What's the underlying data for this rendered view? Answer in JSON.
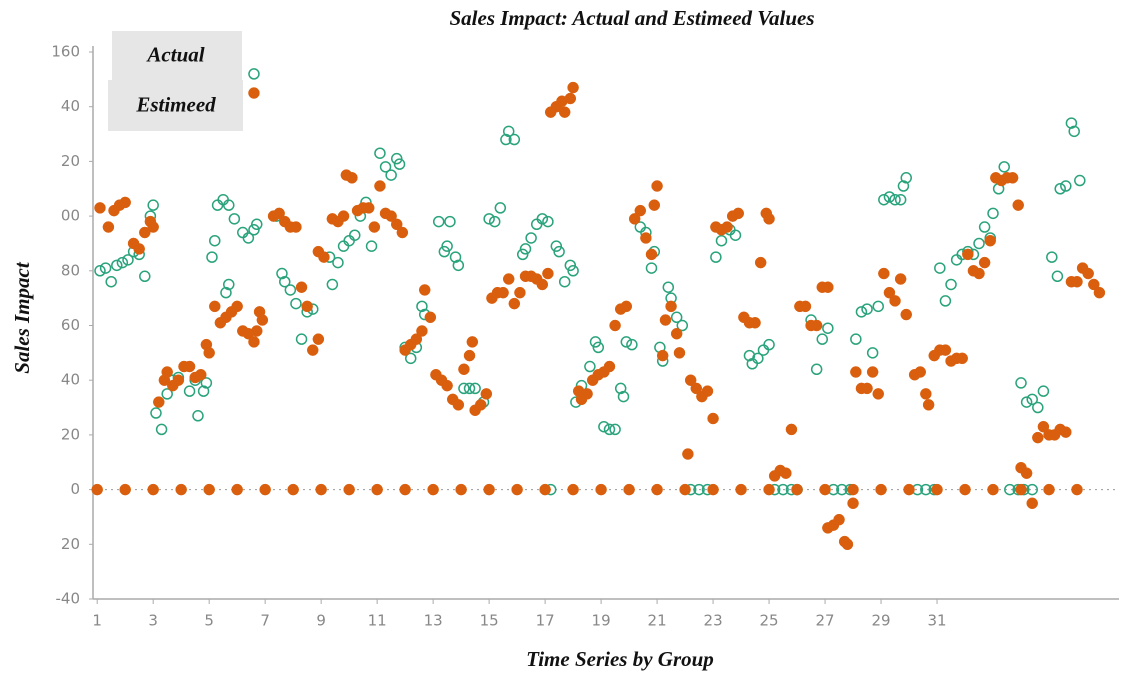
{
  "chart_data": {
    "type": "scatter",
    "title": "Sales Impact: Actual and Estimeed Values",
    "x_label": "Time Series by Group",
    "y_label": "Sales Impact",
    "xlim": [
      0.85,
      37.5
    ],
    "xticks": [
      1,
      3,
      5,
      7,
      9,
      11,
      13,
      15,
      17,
      19,
      21,
      23,
      25,
      27,
      29,
      31
    ],
    "ylim": [
      -40,
      160
    ],
    "yticks": [
      160,
      {
        "value": 140,
        "label": "40"
      },
      {
        "value": 120,
        "label": "20"
      },
      {
        "value": 100,
        "label": "00"
      },
      80,
      60,
      40,
      20,
      0,
      {
        "value": -20,
        "label": "20"
      },
      -40
    ],
    "zero_line": true,
    "legend": "top-left",
    "series": [
      {
        "name": "Actual",
        "color": "#2aa37c",
        "marker": "hollow",
        "x": [
          1.1,
          1.3,
          1.5,
          1.7,
          1.9,
          2.1,
          2.3,
          2.5,
          2.7,
          2.9,
          3.0,
          3.1,
          3.3,
          3.5,
          3.7,
          3.9,
          4.3,
          4.5,
          4.6,
          4.8,
          4.9,
          5.1,
          5.2,
          5.3,
          5.5,
          5.7,
          5.9,
          5.6,
          5.7,
          6.2,
          6.4,
          6.6,
          6.7,
          6.6,
          7.4,
          7.6,
          7.7,
          7.9,
          8.1,
          8.3,
          8.5,
          8.7,
          9.3,
          9.4,
          9.6,
          9.8,
          10.0,
          10.2,
          10.4,
          10.6,
          10.8,
          11.1,
          11.3,
          11.5,
          11.7,
          11.8,
          12.0,
          12.2,
          12.4,
          12.6,
          12.7,
          13.2,
          13.4,
          13.5,
          13.6,
          13.8,
          13.9,
          14.1,
          14.3,
          14.5,
          14.8,
          15.0,
          15.2,
          15.4,
          15.6,
          15.7,
          15.9,
          16.2,
          16.3,
          16.5,
          16.7,
          16.9,
          17.1,
          17.2,
          17.4,
          17.5,
          17.7,
          17.9,
          18.0,
          18.1,
          18.3,
          18.6,
          18.8,
          18.9,
          19.1,
          19.3,
          19.5,
          19.7,
          19.8,
          19.9,
          20.1,
          20.4,
          20.6,
          20.8,
          20.9,
          21.1,
          21.2,
          21.4,
          21.5,
          21.7,
          21.9,
          22.2,
          22.5,
          22.8,
          23.1,
          23.3,
          23.6,
          23.8,
          24.3,
          24.4,
          24.6,
          24.8,
          25.0,
          25.2,
          25.5,
          25.8,
          26.0,
          26.5,
          26.7,
          26.9,
          27.1,
          27.3,
          27.6,
          27.9,
          28.1,
          28.3,
          28.5,
          28.7,
          28.9,
          29.1,
          29.3,
          29.5,
          29.7,
          29.8,
          29.9,
          30.3,
          30.6,
          30.9,
          31.1,
          31.3,
          31.5,
          31.7,
          31.9,
          32.1,
          32.3,
          32.5,
          32.7,
          32.9,
          33.0,
          33.2,
          33.4,
          33.6,
          33.9,
          34.1,
          34.4,
          34.0,
          34.2,
          34.4,
          34.6,
          34.8,
          35.1,
          35.3,
          35.4,
          35.6,
          35.8,
          35.9,
          36.1
        ],
        "values": [
          80,
          81,
          76,
          82,
          83,
          84,
          87,
          86,
          78,
          100,
          104,
          28,
          22,
          35,
          40,
          41,
          36,
          40,
          27,
          36,
          39,
          85,
          91,
          104,
          106,
          104,
          99,
          72,
          75,
          94,
          92,
          95,
          97,
          152,
          100,
          79,
          76,
          73,
          68,
          55,
          65,
          66,
          85,
          75,
          83,
          89,
          91,
          93,
          100,
          105,
          89,
          123,
          118,
          115,
          121,
          119,
          52,
          48,
          52,
          67,
          64,
          98,
          87,
          89,
          98,
          85,
          82,
          37,
          37,
          37,
          32,
          99,
          98,
          103,
          128,
          131,
          128,
          86,
          88,
          92,
          97,
          99,
          98,
          0,
          89,
          87,
          76,
          82,
          80,
          32,
          38,
          45,
          54,
          52,
          23,
          22,
          22,
          37,
          34,
          54,
          53,
          96,
          94,
          81,
          87,
          52,
          47,
          74,
          70,
          63,
          60,
          0,
          0,
          0,
          85,
          91,
          95,
          93,
          49,
          46,
          48,
          51,
          53,
          0,
          0,
          0,
          0,
          62,
          44,
          55,
          59,
          0,
          0,
          0,
          55,
          65,
          66,
          50,
          67,
          106,
          107,
          106,
          106,
          111,
          114,
          0,
          0,
          0,
          81,
          69,
          75,
          84,
          86,
          87,
          86,
          90,
          96,
          92,
          101,
          110,
          118,
          0,
          0,
          0,
          0,
          39,
          32,
          33,
          30,
          36,
          85,
          78,
          110,
          111,
          134,
          131,
          113
        ]
      },
      {
        "name": "Estimeed",
        "color": "#d95f0e",
        "marker": "filled",
        "x": [
          1.1,
          1.4,
          1.6,
          1.8,
          2.0,
          2.3,
          2.5,
          2.7,
          2.9,
          3.0,
          3.2,
          3.4,
          3.5,
          3.7,
          3.9,
          4.1,
          4.3,
          4.5,
          4.7,
          4.9,
          5.0,
          5.2,
          5.4,
          5.6,
          5.8,
          6.0,
          6.2,
          6.4,
          6.6,
          6.6,
          6.7,
          6.8,
          6.9,
          7.3,
          7.5,
          7.7,
          7.9,
          8.1,
          8.3,
          8.5,
          8.7,
          8.9,
          8.9,
          9.1,
          9.4,
          9.6,
          9.8,
          9.9,
          10.1,
          10.3,
          10.5,
          10.7,
          10.9,
          11.1,
          11.3,
          11.5,
          11.7,
          11.9,
          12.0,
          12.2,
          12.4,
          12.6,
          12.7,
          12.9,
          13.1,
          13.3,
          13.5,
          13.7,
          13.9,
          14.1,
          14.3,
          14.4,
          14.5,
          14.7,
          14.9,
          15.1,
          15.3,
          15.5,
          15.7,
          15.9,
          16.1,
          16.3,
          16.5,
          16.7,
          16.9,
          17.1,
          17.2,
          17.4,
          17.6,
          17.7,
          17.9,
          18.0,
          18.2,
          18.3,
          18.5,
          18.7,
          18.9,
          19.1,
          19.3,
          19.5,
          19.7,
          19.9,
          20.2,
          20.4,
          20.6,
          20.8,
          20.9,
          21.0,
          21.2,
          21.3,
          21.5,
          21.7,
          21.8,
          22.1,
          22.2,
          22.4,
          22.6,
          22.8,
          23.0,
          23.1,
          23.3,
          23.5,
          23.7,
          23.9,
          24.1,
          24.3,
          24.5,
          24.7,
          24.9,
          25.0,
          25.2,
          25.4,
          25.6,
          25.8,
          26.1,
          26.3,
          26.5,
          26.7,
          26.9,
          27.1,
          27.1,
          27.3,
          27.5,
          27.7,
          27.8,
          28.0,
          28.1,
          28.3,
          28.5,
          28.7,
          28.9,
          29.1,
          29.3,
          29.5,
          29.7,
          29.9,
          30.2,
          30.4,
          30.6,
          30.7,
          30.9,
          31.1,
          31.3,
          31.5,
          31.7,
          31.9,
          32.1,
          32.3,
          32.5,
          32.7,
          32.9,
          33.1,
          33.3,
          33.5,
          33.7,
          33.9,
          34.0,
          34.2,
          34.4,
          34.6,
          34.8,
          35.0,
          35.2,
          35.4,
          35.6,
          35.8,
          36.0,
          36.2,
          36.4,
          36.6,
          36.8,
          1,
          2,
          3,
          4,
          5,
          6,
          7,
          8,
          9,
          10,
          11,
          12,
          13,
          14,
          15,
          16,
          17,
          18,
          19,
          20,
          21,
          22,
          23,
          24,
          25,
          26,
          27,
          28,
          29,
          30,
          31,
          32,
          33,
          34,
          35,
          36
        ],
        "values": [
          103,
          96,
          102,
          104,
          105,
          90,
          88,
          94,
          98,
          96,
          32,
          40,
          43,
          38,
          40,
          45,
          45,
          41,
          42,
          53,
          50,
          67,
          61,
          63,
          65,
          67,
          58,
          57,
          54,
          145,
          58,
          65,
          62,
          100,
          101,
          98,
          96,
          96,
          74,
          67,
          51,
          55,
          87,
          85,
          99,
          98,
          100,
          115,
          114,
          102,
          103,
          103,
          96,
          111,
          101,
          100,
          97,
          94,
          51,
          53,
          55,
          58,
          73,
          63,
          42,
          40,
          38,
          33,
          31,
          44,
          49,
          54,
          29,
          31,
          35,
          70,
          72,
          72,
          77,
          68,
          72,
          78,
          78,
          77,
          75,
          79,
          138,
          140,
          142,
          138,
          143,
          147,
          36,
          33,
          35,
          40,
          42,
          43,
          45,
          60,
          66,
          67,
          99,
          102,
          92,
          86,
          104,
          111,
          49,
          62,
          67,
          57,
          50,
          13,
          40,
          37,
          34,
          36,
          26,
          96,
          95,
          96,
          100,
          101,
          63,
          61,
          61,
          83,
          101,
          99,
          5,
          7,
          6,
          22,
          67,
          67,
          60,
          60,
          74,
          74,
          -14,
          -13,
          -11,
          -19,
          -20,
          -5,
          43,
          37,
          37,
          43,
          35,
          79,
          72,
          69,
          77,
          64,
          42,
          43,
          35,
          31,
          49,
          51,
          51,
          47,
          48,
          48,
          86,
          80,
          79,
          83,
          91,
          114,
          113,
          114,
          114,
          104,
          8,
          6,
          -5,
          19,
          23,
          20,
          20,
          22,
          21,
          76,
          76,
          81,
          79,
          75,
          72,
          0,
          0,
          0,
          0,
          0,
          0,
          0,
          0,
          0,
          0,
          0,
          0,
          0,
          0,
          0,
          0,
          0,
          0,
          0,
          0,
          0,
          0,
          0,
          0,
          0,
          0,
          0,
          0,
          0,
          0,
          0,
          0,
          0,
          0,
          0,
          0
        ]
      }
    ]
  }
}
